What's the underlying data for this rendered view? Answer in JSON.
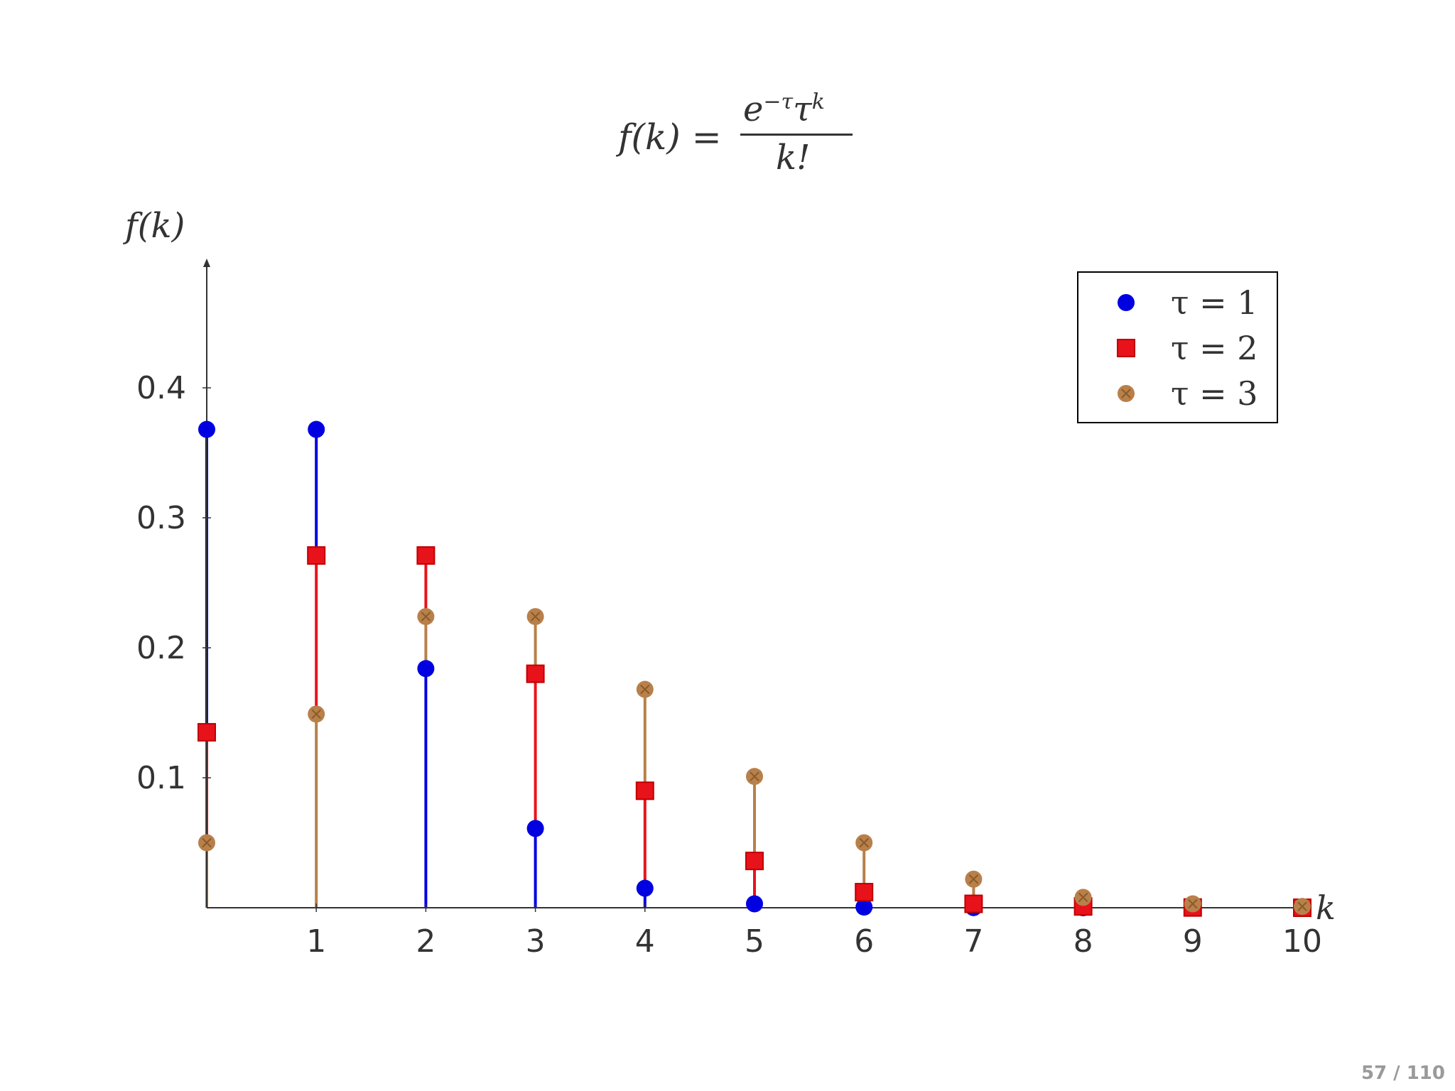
{
  "formula": {
    "lhs": "f(k) =",
    "numerator_base": "e",
    "numerator_exp1": "−τ",
    "numerator_mid": "τ",
    "numerator_exp2": "k",
    "denominator": "k!"
  },
  "page_number": "57 / 110",
  "chart_data": {
    "type": "stem",
    "title": "",
    "xlabel": "k",
    "ylabel": "f(k)",
    "xlim": [
      0,
      10
    ],
    "ylim": [
      0,
      0.4
    ],
    "x_ticks": [
      1,
      2,
      3,
      4,
      5,
      6,
      7,
      8,
      9,
      10
    ],
    "y_ticks": [
      0.1,
      0.2,
      0.3,
      0.4
    ],
    "grid": false,
    "legend_position": "top-right",
    "x": [
      0,
      1,
      2,
      3,
      4,
      5,
      6,
      7,
      8,
      9,
      10
    ],
    "series": [
      {
        "name": "τ = 1",
        "marker": "circle",
        "color": "#0000e0",
        "values": [
          0.368,
          0.368,
          0.184,
          0.061,
          0.015,
          0.003,
          0.0005,
          0.0001,
          0.0,
          0.0,
          0.0
        ]
      },
      {
        "name": "τ = 2",
        "marker": "square",
        "color": "#e8121b",
        "values": [
          0.135,
          0.271,
          0.271,
          0.18,
          0.09,
          0.036,
          0.012,
          0.003,
          0.001,
          0.0002,
          0.0
        ]
      },
      {
        "name": "τ = 3",
        "marker": "otimes",
        "color": "#b8804a",
        "values": [
          0.05,
          0.149,
          0.224,
          0.224,
          0.168,
          0.101,
          0.05,
          0.022,
          0.008,
          0.003,
          0.001
        ]
      }
    ]
  }
}
